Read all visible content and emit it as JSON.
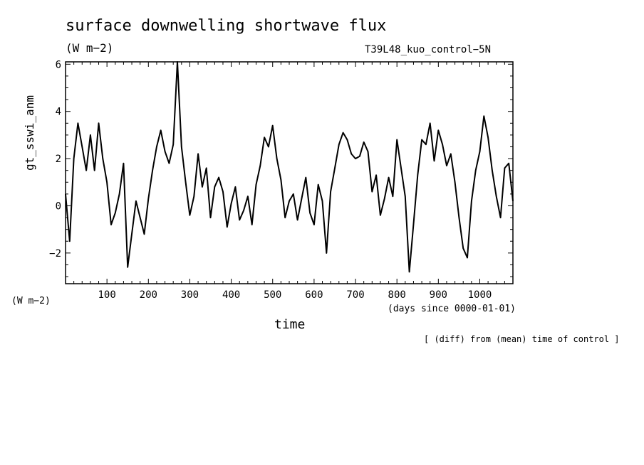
{
  "chart_data": {
    "type": "line",
    "title": "surface downwelling shortwave flux",
    "units": "(W m−2)",
    "run_name": "T39L48_kuo_control−5N",
    "ylabel": "gt_sswi_anm",
    "yaxis_units": "(W m−2)",
    "xlabel": "time",
    "xaxis_units": "(days since 0000-01-01)",
    "note": "[ (diff) from (mean) time of control ]",
    "xlim": [
      0,
      1080
    ],
    "ylim": [
      -3.3,
      6.1
    ],
    "xticks": [
      100,
      200,
      300,
      400,
      500,
      600,
      700,
      800,
      900,
      1000
    ],
    "xtick_labels": [
      "100",
      "200",
      "300",
      "400",
      "500",
      "600",
      "700",
      "800",
      "900",
      "1000"
    ],
    "yticks": [
      -2,
      0,
      2,
      4,
      6
    ],
    "ytick_labels": [
      "−2",
      "0",
      "2",
      "4",
      "6"
    ],
    "grid": false,
    "series": [
      {
        "x": [
          0,
          10,
          20,
          30,
          40,
          50,
          60,
          70,
          80,
          90,
          100,
          110,
          120,
          130,
          140,
          150,
          160,
          170,
          180,
          190,
          200,
          210,
          220,
          230,
          240,
          250,
          260,
          270,
          280,
          290,
          300,
          310,
          320,
          330,
          340,
          350,
          360,
          370,
          380,
          390,
          400,
          410,
          420,
          430,
          440,
          450,
          460,
          470,
          480,
          490,
          500,
          510,
          520,
          530,
          540,
          550,
          560,
          570,
          580,
          590,
          600,
          610,
          620,
          630,
          640,
          650,
          660,
          670,
          680,
          690,
          700,
          710,
          720,
          730,
          740,
          750,
          760,
          770,
          780,
          790,
          800,
          810,
          820,
          830,
          840,
          850,
          860,
          870,
          880,
          890,
          900,
          910,
          920,
          930,
          940,
          950,
          960,
          970,
          980,
          990,
          1000,
          1010,
          1020,
          1030,
          1040,
          1050,
          1060,
          1070,
          1080
        ],
        "values": [
          0.5,
          -1.5,
          2.0,
          3.5,
          2.5,
          1.5,
          3.0,
          1.5,
          3.5,
          2.0,
          1.0,
          -0.8,
          -0.3,
          0.5,
          1.8,
          -2.6,
          -1.2,
          0.2,
          -0.5,
          -1.2,
          0.3,
          1.5,
          2.5,
          3.2,
          2.3,
          1.8,
          2.6,
          6.1,
          2.5,
          1.0,
          -0.4,
          0.4,
          2.2,
          0.8,
          1.6,
          -0.5,
          0.8,
          1.2,
          0.6,
          -0.9,
          0.1,
          0.8,
          -0.6,
          -0.2,
          0.4,
          -0.8,
          0.9,
          1.7,
          2.9,
          2.5,
          3.4,
          2.0,
          1.1,
          -0.5,
          0.2,
          0.5,
          -0.6,
          0.3,
          1.2,
          -0.3,
          -0.8,
          0.9,
          0.2,
          -2.0,
          0.6,
          1.6,
          2.6,
          3.1,
          2.8,
          2.2,
          2.0,
          2.1,
          2.7,
          2.3,
          0.6,
          1.3,
          -0.4,
          0.3,
          1.2,
          0.4,
          2.8,
          1.6,
          0.4,
          -2.8,
          -0.8,
          1.3,
          2.8,
          2.6,
          3.5,
          1.9,
          3.2,
          2.6,
          1.7,
          2.2,
          1.0,
          -0.5,
          -1.8,
          -2.2,
          0.2,
          1.5,
          2.3,
          3.8,
          2.9,
          1.5,
          0.4,
          -0.5,
          1.6,
          1.8,
          0.2
        ]
      }
    ]
  }
}
